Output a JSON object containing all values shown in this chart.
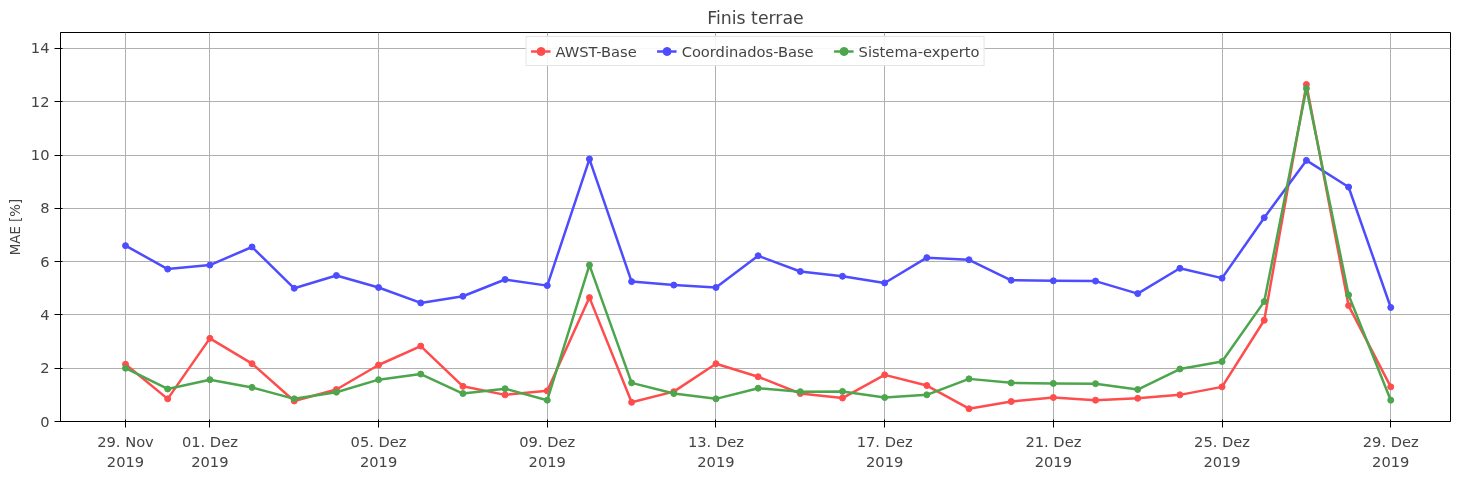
{
  "chart_data": {
    "type": "line",
    "title": "Finis terrae",
    "ylabel": "MAE [%]",
    "x": [
      "2019-11-29",
      "2019-11-30",
      "2019-12-01",
      "2019-12-02",
      "2019-12-03",
      "2019-12-04",
      "2019-12-05",
      "2019-12-06",
      "2019-12-07",
      "2019-12-08",
      "2019-12-09",
      "2019-12-10",
      "2019-12-11",
      "2019-12-12",
      "2019-12-13",
      "2019-12-14",
      "2019-12-15",
      "2019-12-16",
      "2019-12-17",
      "2019-12-18",
      "2019-12-19",
      "2019-12-20",
      "2019-12-21",
      "2019-12-22",
      "2019-12-23",
      "2019-12-24",
      "2019-12-25",
      "2019-12-26",
      "2019-12-27",
      "2019-12-28",
      "2019-12-29"
    ],
    "series": [
      {
        "name": "AWST-Base",
        "color": "#ff4d4d",
        "values": [
          2.15,
          0.85,
          3.12,
          2.17,
          0.77,
          1.2,
          2.12,
          2.83,
          1.32,
          1.0,
          1.15,
          4.65,
          0.72,
          1.12,
          2.17,
          1.68,
          1.05,
          0.88,
          1.75,
          1.35,
          0.48,
          0.75,
          0.9,
          0.8,
          0.87,
          1.0,
          1.3,
          3.8,
          12.65,
          4.35,
          1.3
        ]
      },
      {
        "name": "Coordinados-Base",
        "color": "#4d4dff",
        "values": [
          6.6,
          5.72,
          5.87,
          6.55,
          5.0,
          5.48,
          5.03,
          4.45,
          4.7,
          5.33,
          5.1,
          9.85,
          5.25,
          5.12,
          5.03,
          6.22,
          5.63,
          5.45,
          5.2,
          6.15,
          6.07,
          5.3,
          5.28,
          5.27,
          4.8,
          5.75,
          5.38,
          7.65,
          9.8,
          8.8,
          4.28
        ]
      },
      {
        "name": "Sistema-experto",
        "color": "#4da64d",
        "values": [
          2.0,
          1.22,
          1.57,
          1.28,
          0.85,
          1.1,
          1.57,
          1.78,
          1.05,
          1.23,
          0.8,
          5.87,
          1.45,
          1.05,
          0.85,
          1.25,
          1.12,
          1.13,
          0.9,
          1.0,
          1.6,
          1.45,
          1.43,
          1.42,
          1.2,
          1.97,
          2.25,
          4.5,
          12.5,
          4.75,
          0.8
        ]
      }
    ],
    "xlim": [
      "2019-11-27T11:00",
      "2019-12-30T10:00"
    ],
    "xticks": [
      {
        "value": "2019-11-29",
        "label": "29. Nov\n2019"
      },
      {
        "value": "2019-12-01",
        "label": "01. Dez\n2019"
      },
      {
        "value": "2019-12-05",
        "label": "05. Dez\n2019"
      },
      {
        "value": "2019-12-09",
        "label": "09. Dez\n2019"
      },
      {
        "value": "2019-12-13",
        "label": "13. Dez\n2019"
      },
      {
        "value": "2019-12-17",
        "label": "17. Dez\n2019"
      },
      {
        "value": "2019-12-21",
        "label": "21. Dez\n2019"
      },
      {
        "value": "2019-12-25",
        "label": "25. Dez\n2019"
      },
      {
        "value": "2019-12-29",
        "label": "29. Dez\n2019"
      }
    ],
    "ylim": [
      0,
      14.6
    ],
    "yticks": [
      0,
      2,
      4,
      6,
      8,
      10,
      12,
      14
    ],
    "grid": true,
    "legend": "top",
    "marker": "circle",
    "line_style": "solid"
  }
}
